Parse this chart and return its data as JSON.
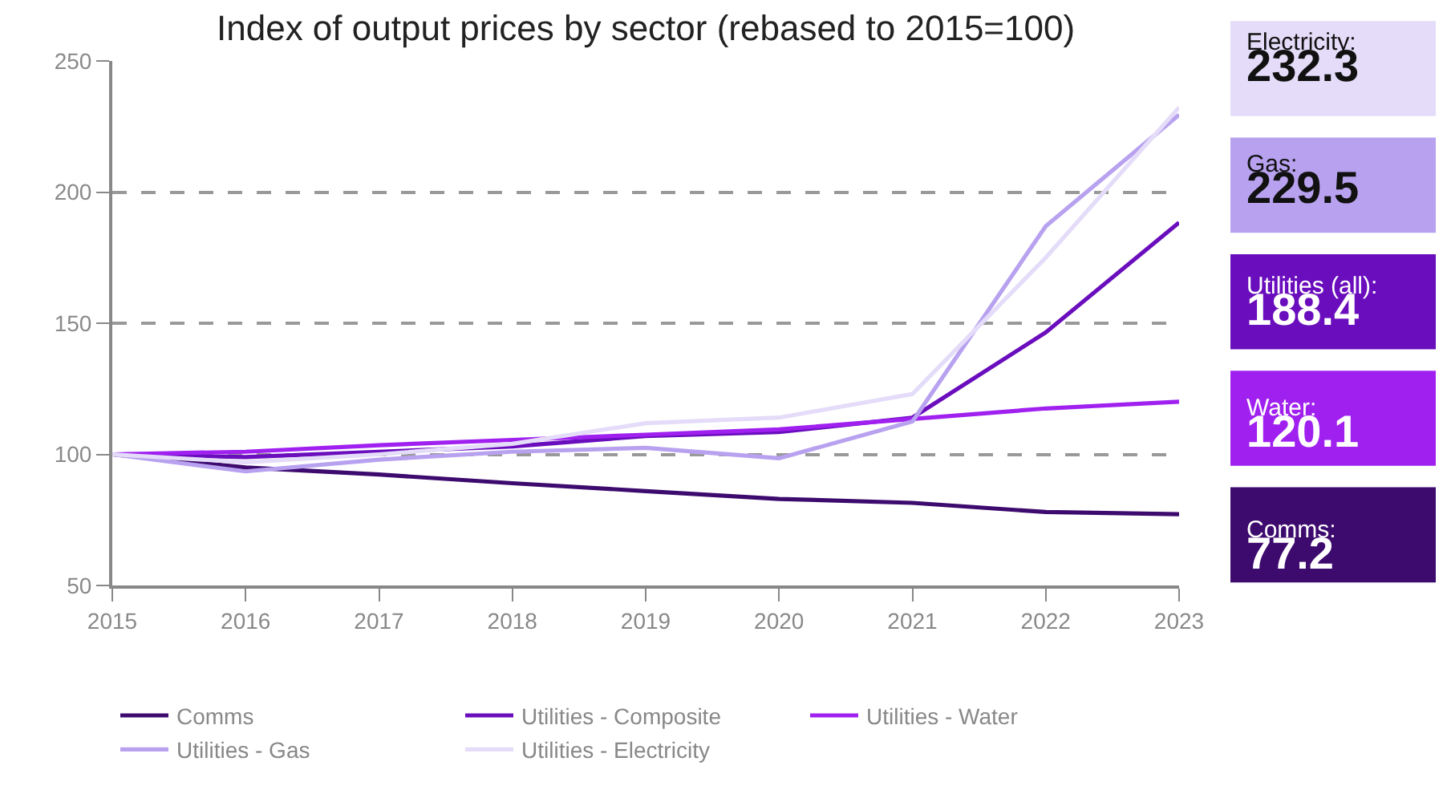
{
  "chart_data": {
    "type": "line",
    "title": "Index of output prices by sector (rebased to 2015=100)",
    "x": [
      2015,
      2016,
      2017,
      2018,
      2019,
      2020,
      2021,
      2022,
      2023
    ],
    "xlim": [
      2015,
      2023
    ],
    "xticks": [
      2015,
      2016,
      2017,
      2018,
      2019,
      2020,
      2021,
      2022,
      2023
    ],
    "ylim": [
      50,
      250
    ],
    "yticks": [
      50,
      100,
      150,
      200,
      250
    ],
    "grid": "y",
    "legend": "bottom",
    "series": [
      {
        "name": "Comms",
        "color": "#3d0a6e",
        "values": [
          100,
          95,
          92.3,
          89,
          86,
          83,
          81.5,
          78,
          77.2
        ],
        "value_labels": [
          null,
          null,
          null,
          null,
          null,
          null,
          null,
          null,
          "77.2"
        ]
      },
      {
        "name": "Utilities - Composite",
        "color": "#6a0dbd",
        "values": [
          100,
          99,
          101,
          103,
          107,
          108.5,
          114,
          146.5,
          188.4
        ],
        "value_labels": [
          null,
          null,
          null,
          null,
          null,
          null,
          null,
          null,
          "188.4"
        ]
      },
      {
        "name": "Utilities - Water",
        "color": "#a020f0",
        "values": [
          100,
          101,
          103.5,
          105.5,
          107.5,
          109.5,
          113.5,
          117.5,
          120.1
        ],
        "value_labels": [
          null,
          null,
          null,
          null,
          null,
          null,
          null,
          null,
          "120.1"
        ]
      },
      {
        "name": "Utilities - Gas",
        "color": "#b8a2f0",
        "values": [
          100,
          93.5,
          98,
          101,
          102.5,
          98.5,
          112.5,
          187,
          229.5
        ],
        "value_labels": [
          null,
          null,
          null,
          null,
          null,
          null,
          null,
          null,
          "229.5"
        ]
      },
      {
        "name": "Utilities - Electricity",
        "color": "#e4dcf8",
        "values": [
          100,
          97,
          100,
          104,
          111.9,
          114,
          123,
          175,
          232.3
        ],
        "value_labels": [
          null,
          null,
          null,
          null,
          null,
          null,
          null,
          null,
          "232.3"
        ]
      }
    ],
    "annotations": [
      "Comms:",
      "Utilities (all):",
      "Water:",
      "Gas:",
      "Electricity:"
    ]
  }
}
